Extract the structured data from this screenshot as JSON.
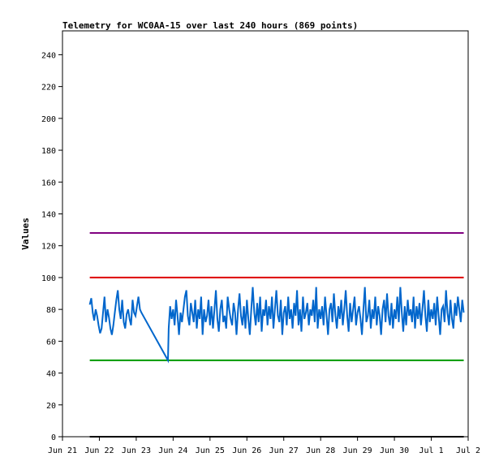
{
  "chart_data": {
    "type": "line",
    "title": "Telemetry for WC0AA-15 over last 240 hours (869 points)",
    "ylabel": "Values",
    "xlabel": "",
    "ylim": [
      0,
      255
    ],
    "y_ticks": [
      0,
      20,
      40,
      60,
      80,
      100,
      120,
      140,
      160,
      180,
      200,
      220,
      240
    ],
    "x_ticks": [
      {
        "label": "Jun 21",
        "day": 21
      },
      {
        "label": "Jun 22",
        "day": 22
      },
      {
        "label": "Jun 23",
        "day": 23
      },
      {
        "label": "Jun 24",
        "day": 24
      },
      {
        "label": "Jun 25",
        "day": 25
      },
      {
        "label": "Jun 26",
        "day": 26
      },
      {
        "label": "Jun 27",
        "day": 27
      },
      {
        "label": "Jun 28",
        "day": 28
      },
      {
        "label": "Jun 29",
        "day": 29
      },
      {
        "label": "Jun 30",
        "day": 30
      },
      {
        "label": "Jul 1",
        "day": 31
      },
      {
        "label": "Jul 2",
        "day": 32
      }
    ],
    "xlim": [
      21.0,
      32.0
    ],
    "grid": false,
    "series": [
      {
        "color": "#0066cc",
        "x": [
          21.74,
          21.78,
          21.82,
          21.86,
          21.9,
          21.94,
          21.98,
          22.02,
          22.06,
          22.1,
          22.14,
          22.18,
          22.22,
          22.26,
          22.3,
          22.34,
          22.38,
          22.42,
          22.46,
          22.5,
          22.54,
          22.58,
          22.62,
          22.66,
          22.7,
          22.74,
          22.78,
          22.82,
          22.86,
          22.9,
          22.94,
          22.98,
          23.02,
          23.06,
          23.1,
          23.14,
          23.86,
          23.88,
          23.92,
          23.96,
          24.0,
          24.04,
          24.08,
          24.12,
          24.16,
          24.2,
          24.24,
          24.28,
          24.32,
          24.36,
          24.4,
          24.44,
          24.48,
          24.52,
          24.56,
          24.6,
          24.64,
          24.68,
          24.72,
          24.76,
          24.8,
          24.84,
          24.88,
          24.92,
          24.96,
          25.0,
          25.04,
          25.08,
          25.12,
          25.16,
          25.2,
          25.24,
          25.28,
          25.32,
          25.36,
          25.4,
          25.44,
          25.48,
          25.52,
          25.56,
          25.6,
          25.64,
          25.68,
          25.72,
          25.76,
          25.8,
          25.84,
          25.88,
          25.92,
          25.96,
          26.0,
          26.04,
          26.08,
          26.12,
          26.16,
          26.2,
          26.24,
          26.28,
          26.32,
          26.36,
          26.4,
          26.44,
          26.48,
          26.52,
          26.56,
          26.6,
          26.64,
          26.68,
          26.72,
          26.76,
          26.8,
          26.84,
          26.88,
          26.92,
          26.96,
          27.0,
          27.04,
          27.08,
          27.12,
          27.16,
          27.2,
          27.24,
          27.28,
          27.32,
          27.36,
          27.4,
          27.44,
          27.48,
          27.52,
          27.56,
          27.6,
          27.64,
          27.68,
          27.72,
          27.76,
          27.8,
          27.84,
          27.88,
          27.92,
          27.96,
          28.0,
          28.04,
          28.08,
          28.12,
          28.16,
          28.2,
          28.24,
          28.28,
          28.32,
          28.36,
          28.4,
          28.44,
          28.48,
          28.52,
          28.56,
          28.6,
          28.64,
          28.68,
          28.72,
          28.76,
          28.8,
          28.84,
          28.88,
          28.92,
          28.96,
          29.0,
          29.04,
          29.08,
          29.12,
          29.16,
          29.2,
          29.24,
          29.28,
          29.32,
          29.36,
          29.4,
          29.44,
          29.48,
          29.52,
          29.56,
          29.6,
          29.64,
          29.68,
          29.72,
          29.76,
          29.8,
          29.84,
          29.88,
          29.92,
          29.96,
          30.0,
          30.04,
          30.08,
          30.12,
          30.16,
          30.2,
          30.24,
          30.28,
          30.32,
          30.36,
          30.4,
          30.44,
          30.48,
          30.52,
          30.56,
          30.6,
          30.64,
          30.68,
          30.72,
          30.76,
          30.8,
          30.84,
          30.88,
          30.92,
          30.96,
          31.0,
          31.04,
          31.08,
          31.12,
          31.16,
          31.2,
          31.24,
          31.28,
          31.32,
          31.36,
          31.4,
          31.44,
          31.48,
          31.52,
          31.56,
          31.6,
          31.64,
          31.68,
          31.72,
          31.76,
          31.8,
          31.84,
          31.88
        ],
        "y": [
          83,
          87,
          78,
          73,
          80,
          76,
          70,
          65,
          68,
          78,
          88,
          72,
          80,
          75,
          68,
          64,
          70,
          78,
          86,
          92,
          80,
          74,
          86,
          72,
          68,
          77,
          80,
          74,
          70,
          86,
          78,
          76,
          82,
          88,
          80,
          78,
          48,
          68,
          82,
          74,
          80,
          70,
          86,
          76,
          64,
          78,
          72,
          80,
          88,
          92,
          76,
          70,
          84,
          78,
          72,
          86,
          68,
          80,
          74,
          88,
          64,
          80,
          72,
          76,
          86,
          70,
          82,
          68,
          80,
          92,
          74,
          66,
          80,
          86,
          72,
          76,
          68,
          88,
          80,
          74,
          70,
          84,
          78,
          64,
          80,
          90,
          76,
          70,
          82,
          68,
          86,
          74,
          64,
          80,
          94,
          78,
          70,
          84,
          72,
          88,
          66,
          80,
          76,
          86,
          70,
          82,
          74,
          88,
          68,
          80,
          92,
          76,
          72,
          86,
          64,
          78,
          82,
          70,
          88,
          74,
          80,
          68,
          84,
          76,
          92,
          70,
          80,
          66,
          88,
          74,
          78,
          84,
          70,
          80,
          76,
          86,
          72,
          94,
          68,
          80,
          74,
          82,
          70,
          88,
          76,
          64,
          80,
          84,
          72,
          90,
          76,
          68,
          82,
          74,
          86,
          70,
          80,
          92,
          76,
          66,
          84,
          72,
          80,
          88,
          70,
          78,
          82,
          74,
          64,
          80,
          94,
          72,
          76,
          86,
          68,
          80,
          74,
          88,
          70,
          82,
          76,
          64,
          80,
          86,
          72,
          90,
          76,
          70,
          84,
          68,
          80,
          74,
          88,
          72,
          94,
          78,
          66,
          82,
          70,
          86,
          76,
          80,
          72,
          88,
          68,
          82,
          74,
          84,
          70,
          80,
          92,
          76,
          66,
          86,
          72,
          80,
          74,
          84,
          70,
          88,
          76,
          64,
          80,
          82,
          72,
          92,
          78,
          70,
          86,
          74,
          68,
          84,
          76,
          88,
          80,
          72,
          86,
          78
        ]
      }
    ],
    "reference_lines": [
      {
        "value": 128,
        "color": "#800080"
      },
      {
        "value": 100,
        "color": "#dd0000"
      },
      {
        "value": 48,
        "color": "#009900"
      },
      {
        "value": 0,
        "color": "#000000"
      }
    ]
  }
}
